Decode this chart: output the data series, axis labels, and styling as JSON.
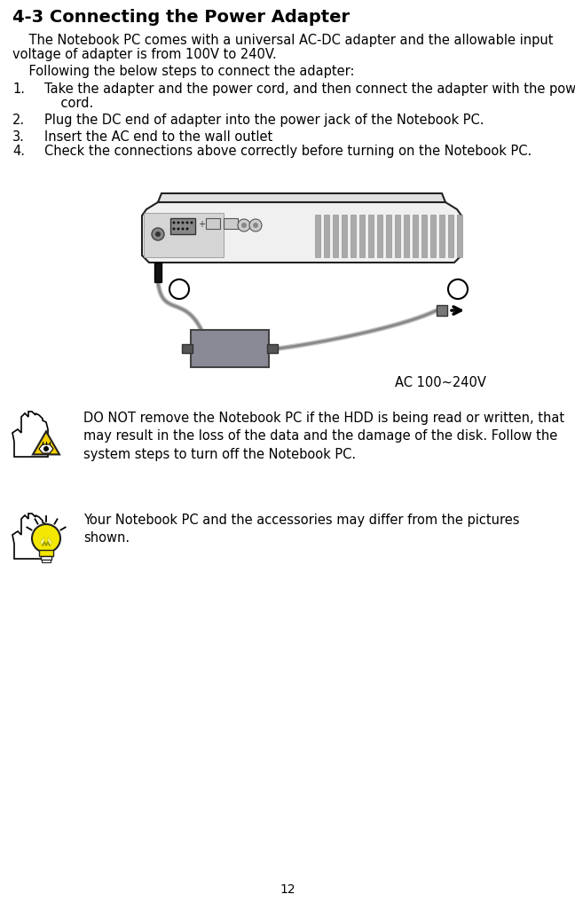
{
  "title": "4-3 Connecting the Power Adapter",
  "para1_line1": "    The Notebook PC comes with a universal AC-DC adapter and the allowable input",
  "para1_line2": "voltage of adapter is from 100V to 240V.",
  "para2": "    Following the below steps to connect the adapter:",
  "step1a": "Take the adapter and the power cord, and then connect the adapter with the power",
  "step1b": "    cord.",
  "step2": "Plug the DC end of adapter into the power jack of the Notebook PC.",
  "step3": "Insert the AC end to the wall outlet",
  "step4": "Check the connections above correctly before turning on the Notebook PC.",
  "ac_label": "AC 100~240V",
  "warning_line1": "DO NOT remove the Notebook PC if the HDD is being read or written, that",
  "warning_line2": "may result in the loss of the data and the damage of the disk. Follow the",
  "warning_line3": "system steps to turn off the Notebook PC.",
  "note_line1": "Your Notebook PC and the accessories may differ from the pictures",
  "note_line2": "shown.",
  "page_number": "12",
  "bg_color": "#ffffff",
  "text_color": "#000000",
  "title_fontsize": 14,
  "body_fontsize": 10.5,
  "small_fontsize": 9.5
}
